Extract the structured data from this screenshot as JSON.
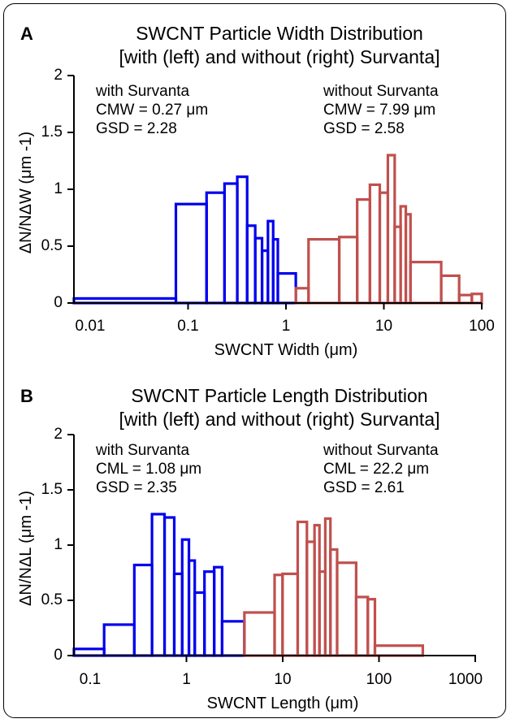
{
  "chart_data": [
    {
      "type": "bar",
      "panel_label": "A",
      "title_lines": [
        "SWCNT Particle Width Distribution",
        "[with (left) and without (right) Survanta]"
      ],
      "xlabel": "SWCNT Width (μm)",
      "ylabel": "ΔN/NΔW (μm -1)",
      "x_scale": "log",
      "xlim": [
        0.01,
        100
      ],
      "ylim": [
        0,
        2
      ],
      "x_ticks": [
        "0.01",
        "0.1",
        "1",
        "10",
        "100"
      ],
      "y_ticks": [
        "0",
        "0.5",
        "1",
        "1.5",
        "2"
      ],
      "grid": false,
      "annotations": [
        {
          "lines": [
            "with Survanta",
            "CMW = 0.27 μm",
            "GSD = 2.28"
          ]
        },
        {
          "lines": [
            "without Survanta",
            "CMW = 7.99 μm",
            "GSD = 2.58"
          ]
        }
      ],
      "series": [
        {
          "color": "#0000ee",
          "bins": [
            {
              "x0": 0.01,
              "x1": 0.1,
              "y": 0.04
            },
            {
              "x0": 0.1,
              "x1": 0.2,
              "y": 0.87
            },
            {
              "x0": 0.2,
              "x1": 0.3,
              "y": 0.97
            },
            {
              "x0": 0.3,
              "x1": 0.4,
              "y": 1.05
            },
            {
              "x0": 0.4,
              "x1": 0.5,
              "y": 1.11
            },
            {
              "x0": 0.5,
              "x1": 0.6,
              "y": 0.68
            },
            {
              "x0": 0.6,
              "x1": 0.7,
              "y": 0.57
            },
            {
              "x0": 0.7,
              "x1": 0.8,
              "y": 0.46
            },
            {
              "x0": 0.8,
              "x1": 0.9,
              "y": 0.72
            },
            {
              "x0": 0.9,
              "x1": 1.0,
              "y": 0.56
            },
            {
              "x0": 1.0,
              "x1": 1.5,
              "y": 0.26
            }
          ]
        },
        {
          "color": "#c0504d",
          "bins": [
            {
              "x0": 1.5,
              "x1": 2,
              "y": 0.13
            },
            {
              "x0": 2,
              "x1": 4,
              "y": 0.56
            },
            {
              "x0": 4,
              "x1": 6,
              "y": 0.58
            },
            {
              "x0": 6,
              "x1": 8,
              "y": 0.91
            },
            {
              "x0": 8,
              "x1": 10,
              "y": 1.04
            },
            {
              "x0": 10,
              "x1": 12,
              "y": 0.97
            },
            {
              "x0": 12,
              "x1": 14,
              "y": 1.3
            },
            {
              "x0": 14,
              "x1": 16,
              "y": 0.67
            },
            {
              "x0": 16,
              "x1": 18,
              "y": 0.85
            },
            {
              "x0": 18,
              "x1": 20,
              "y": 0.78
            },
            {
              "x0": 20,
              "x1": 40,
              "y": 0.36
            },
            {
              "x0": 40,
              "x1": 60,
              "y": 0.24
            },
            {
              "x0": 60,
              "x1": 80,
              "y": 0.07
            },
            {
              "x0": 80,
              "x1": 100,
              "y": 0.08
            }
          ]
        }
      ]
    },
    {
      "type": "bar",
      "panel_label": "B",
      "title_lines": [
        "SWCNT Particle Length Distribution",
        "[with (left) and without (right) Survanta]"
      ],
      "xlabel": "SWCNT Length (μm)",
      "ylabel": "ΔN/NΔL (μm -1)",
      "x_scale": "log",
      "xlim": [
        0.1,
        1000
      ],
      "ylim": [
        0,
        2
      ],
      "x_ticks": [
        "0.1",
        "1",
        "10",
        "100",
        "1000"
      ],
      "y_ticks": [
        "0",
        "0.5",
        "1",
        "1.5",
        "2"
      ],
      "grid": false,
      "annotations": [
        {
          "lines": [
            "with Survanta",
            "CML = 1.08 μm",
            "GSD = 2.35"
          ]
        },
        {
          "lines": [
            "without Survanta",
            "CML = 22.2 μm",
            "GSD = 2.61"
          ]
        }
      ],
      "series": [
        {
          "color": "#0000ee",
          "bins": [
            {
              "x0": 0.1,
              "x1": 0.2,
              "y": 0.06
            },
            {
              "x0": 0.2,
              "x1": 0.4,
              "y": 0.28
            },
            {
              "x0": 0.4,
              "x1": 0.6,
              "y": 0.82
            },
            {
              "x0": 0.6,
              "x1": 0.8,
              "y": 1.28
            },
            {
              "x0": 0.8,
              "x1": 1.0,
              "y": 1.25
            },
            {
              "x0": 1.0,
              "x1": 1.2,
              "y": 0.74
            },
            {
              "x0": 1.2,
              "x1": 1.4,
              "y": 1.05
            },
            {
              "x0": 1.4,
              "x1": 1.6,
              "y": 0.86
            },
            {
              "x0": 1.6,
              "x1": 2.0,
              "y": 0.57
            },
            {
              "x0": 2.0,
              "x1": 2.5,
              "y": 0.76
            },
            {
              "x0": 2.5,
              "x1": 3.0,
              "y": 0.8
            },
            {
              "x0": 3.0,
              "x1": 5.0,
              "y": 0.31
            }
          ]
        },
        {
          "color": "#c0504d",
          "bins": [
            {
              "x0": 5,
              "x1": 10,
              "y": 0.39
            },
            {
              "x0": 10,
              "x1": 12,
              "y": 0.73
            },
            {
              "x0": 12,
              "x1": 17,
              "y": 0.74
            },
            {
              "x0": 17,
              "x1": 21,
              "y": 1.21
            },
            {
              "x0": 21,
              "x1": 25,
              "y": 1.03
            },
            {
              "x0": 25,
              "x1": 28,
              "y": 1.18
            },
            {
              "x0": 28,
              "x1": 32,
              "y": 0.76
            },
            {
              "x0": 32,
              "x1": 36,
              "y": 1.24
            },
            {
              "x0": 36,
              "x1": 42,
              "y": 0.96
            },
            {
              "x0": 42,
              "x1": 65,
              "y": 0.84
            },
            {
              "x0": 65,
              "x1": 85,
              "y": 0.53
            },
            {
              "x0": 85,
              "x1": 100,
              "y": 0.51
            },
            {
              "x0": 100,
              "x1": 300,
              "y": 0.09
            }
          ]
        }
      ]
    }
  ]
}
